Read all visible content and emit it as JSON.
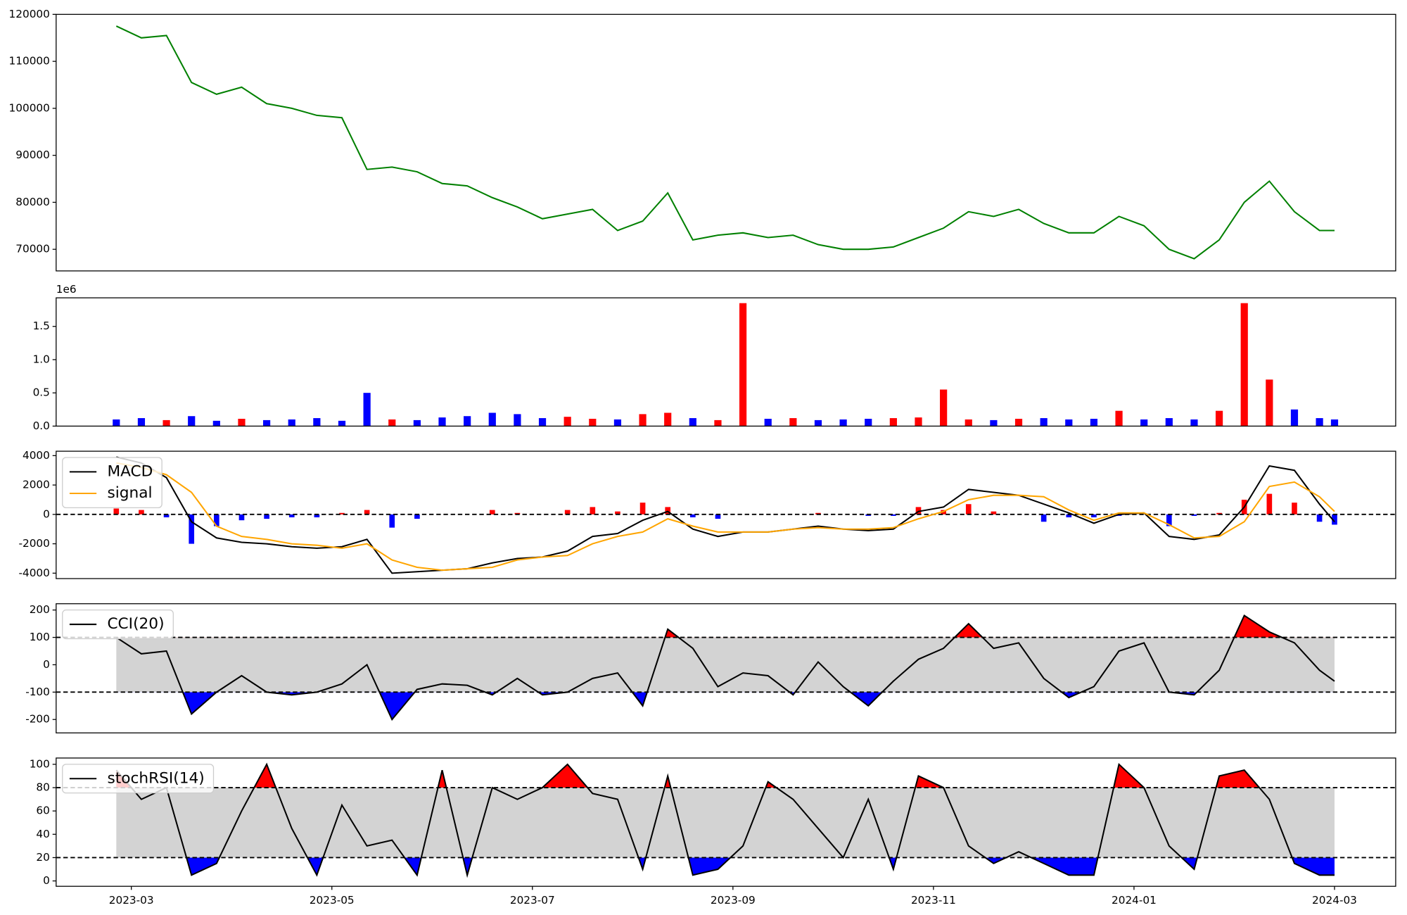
{
  "chart_data": {
    "type": "panels",
    "x": [
      -0.15,
      0.1,
      0.35,
      0.6,
      0.85,
      1.1,
      1.35,
      1.6,
      1.85,
      2.1,
      2.35,
      2.6,
      2.85,
      3.1,
      3.35,
      3.6,
      3.85,
      4.1,
      4.35,
      4.6,
      4.85,
      5.1,
      5.35,
      5.6,
      5.85,
      6.1,
      6.35,
      6.6,
      6.85,
      7.1,
      7.35,
      7.6,
      7.85,
      8.1,
      8.35,
      8.6,
      8.85,
      9.1,
      9.35,
      9.6,
      9.85,
      10.1,
      10.35,
      10.6,
      10.85,
      11.1,
      11.35,
      11.6,
      11.85,
      12.0
    ],
    "xlim": [
      -0.75,
      12.61
    ],
    "xticks": [
      {
        "value": 0,
        "label": "2023-03"
      },
      {
        "value": 2,
        "label": "2023-05"
      },
      {
        "value": 4,
        "label": "2023-07"
      },
      {
        "value": 6,
        "label": "2023-09"
      },
      {
        "value": 8,
        "label": "2023-11"
      },
      {
        "value": 10,
        "label": "2024-01"
      },
      {
        "value": 12,
        "label": "2024-03"
      }
    ],
    "panels": [
      {
        "type": "line",
        "color": "green",
        "values": [
          117500,
          115000,
          115500,
          105500,
          103000,
          104500,
          101000,
          100000,
          98500,
          98000,
          87000,
          87500,
          86500,
          84000,
          83500,
          81000,
          79000,
          76500,
          77500,
          78500,
          74000,
          76000,
          82000,
          72000,
          73000,
          73500,
          72500,
          73000,
          71000,
          70000,
          70000,
          70500,
          72500,
          74500,
          78000,
          77000,
          78500,
          75500,
          73500,
          73500,
          77000,
          75000,
          70000,
          68000,
          72000,
          80000,
          84500,
          78000,
          74000,
          74000
        ],
        "ylim": [
          65400,
          120000
        ],
        "yticks": [
          70000,
          80000,
          90000,
          100000,
          110000,
          120000
        ]
      },
      {
        "type": "bar",
        "offset_label": "1e6",
        "values": [
          100000,
          120000,
          90000,
          150000,
          80000,
          110000,
          90000,
          100000,
          120000,
          80000,
          500000,
          100000,
          90000,
          130000,
          150000,
          200000,
          180000,
          120000,
          140000,
          110000,
          100000,
          180000,
          200000,
          120000,
          90000,
          1850000,
          110000,
          120000,
          90000,
          100000,
          110000,
          120000,
          130000,
          550000,
          100000,
          90000,
          110000,
          120000,
          100000,
          110000,
          230000,
          100000,
          120000,
          100000,
          230000,
          1850000,
          700000,
          250000,
          120000,
          100000
        ],
        "colors": [
          "blue",
          "blue",
          "red",
          "blue",
          "blue",
          "red",
          "blue",
          "blue",
          "blue",
          "blue",
          "blue",
          "red",
          "blue",
          "blue",
          "blue",
          "blue",
          "blue",
          "blue",
          "red",
          "red",
          "blue",
          "red",
          "red",
          "blue",
          "red",
          "red",
          "blue",
          "red",
          "blue",
          "blue",
          "blue",
          "red",
          "red",
          "red",
          "red",
          "blue",
          "red",
          "blue",
          "blue",
          "blue",
          "red",
          "blue",
          "blue",
          "blue",
          "red",
          "red",
          "red",
          "blue",
          "blue",
          "blue"
        ],
        "ylim": [
          0,
          1930000
        ],
        "yticks": [
          {
            "value": 0,
            "label": "0.0"
          },
          {
            "value": 500000,
            "label": "0.5"
          },
          {
            "value": 1000000,
            "label": "1.0"
          },
          {
            "value": 1500000,
            "label": "1.5"
          }
        ]
      },
      {
        "type": "line",
        "legend": "upper left",
        "hline": 0,
        "series": [
          {
            "name": "MACD",
            "color": "black",
            "values": [
              3900,
              3500,
              2500,
              -500,
              -1600,
              -1900,
              -2000,
              -2200,
              -2300,
              -2200,
              -1700,
              -4000,
              -3900,
              -3800,
              -3700,
              -3300,
              -3000,
              -2900,
              -2500,
              -1500,
              -1300,
              -400,
              200,
              -1000,
              -1500,
              -1200,
              -1200,
              -1000,
              -800,
              -1000,
              -1100,
              -1000,
              200,
              500,
              1700,
              1500,
              1300,
              700,
              100,
              -600,
              0,
              100,
              -1500,
              -1700,
              -1400,
              500,
              3300,
              3000,
              700,
              -500
            ]
          },
          {
            "name": "signal",
            "color": "orange",
            "values": [
              3500,
              3200,
              2700,
              1500,
              -800,
              -1500,
              -1700,
              -2000,
              -2100,
              -2300,
              -2000,
              -3100,
              -3600,
              -3800,
              -3700,
              -3600,
              -3100,
              -2900,
              -2800,
              -2000,
              -1500,
              -1200,
              -300,
              -800,
              -1200,
              -1200,
              -1200,
              -1000,
              -900,
              -1000,
              -1000,
              -900,
              -300,
              200,
              1000,
              1300,
              1300,
              1200,
              300,
              -400,
              100,
              100,
              -700,
              -1600,
              -1500,
              -500,
              1900,
              2200,
              1200,
              200
            ]
          }
        ],
        "histogram": {
          "up_color": "red",
          "down_color": "blue",
          "values": [
            400,
            300,
            -200,
            -2000,
            -800,
            -400,
            -300,
            -200,
            -200,
            100,
            300,
            -900,
            -300,
            0,
            0,
            300,
            100,
            0,
            300,
            500,
            200,
            800,
            500,
            -200,
            -300,
            0,
            0,
            0,
            100,
            0,
            -100,
            -100,
            500,
            300,
            700,
            200,
            0,
            -500,
            -200,
            -200,
            -100,
            0,
            -800,
            -100,
            100,
            1000,
            1400,
            800,
            -500,
            -700
          ]
        },
        "ylim": [
          -4370,
          4300
        ],
        "yticks": [
          -4000,
          -2000,
          0,
          2000,
          4000
        ]
      },
      {
        "type": "line",
        "legend": "upper left",
        "bands": [
          -100,
          100
        ],
        "band_color": "lightgray",
        "above_color": "red",
        "below_color": "blue",
        "series": [
          {
            "name": "CCI(20)",
            "color": "black",
            "values": [
              100,
              40,
              50,
              -180,
              -100,
              -40,
              -100,
              -110,
              -100,
              -70,
              0,
              -200,
              -90,
              -70,
              -75,
              -110,
              -50,
              -110,
              -100,
              -50,
              -30,
              -150,
              130,
              60,
              -80,
              -30,
              -40,
              -110,
              10,
              -80,
              -150,
              -60,
              20,
              60,
              150,
              60,
              80,
              -50,
              -120,
              -80,
              50,
              80,
              -100,
              -110,
              -20,
              180,
              120,
              80,
              -20,
              -60
            ]
          }
        ],
        "ylim": [
          -249,
          223
        ],
        "yticks": [
          -200,
          -100,
          0,
          100,
          200
        ]
      },
      {
        "type": "line",
        "legend": "upper left",
        "bands": [
          20,
          80
        ],
        "band_color": "lightgray",
        "above_color": "red",
        "below_color": "blue",
        "series": [
          {
            "name": "stochRSI(14)",
            "color": "black",
            "values": [
              95,
              70,
              80,
              5,
              15,
              60,
              100,
              45,
              5,
              65,
              30,
              35,
              5,
              95,
              5,
              80,
              70,
              80,
              100,
              75,
              70,
              10,
              90,
              5,
              10,
              30,
              85,
              70,
              45,
              20,
              70,
              10,
              90,
              80,
              30,
              15,
              25,
              15,
              5,
              5,
              100,
              80,
              30,
              10,
              90,
              95,
              70,
              15,
              5,
              5
            ]
          }
        ],
        "ylim": [
          -4.6,
          105.4
        ],
        "yticks": [
          0,
          20,
          40,
          60,
          80,
          100
        ]
      }
    ]
  }
}
